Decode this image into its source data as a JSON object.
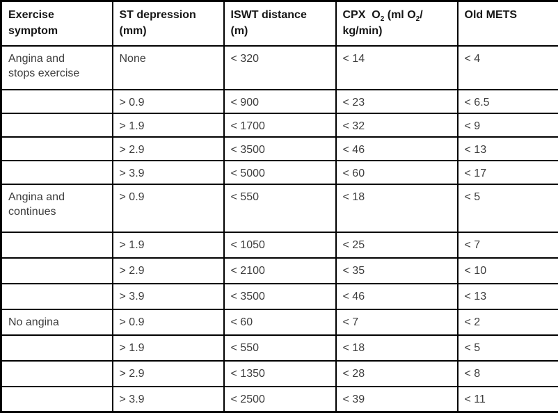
{
  "colors": {
    "border": "#000000",
    "header_text": "#161616",
    "body_text": "#3d3d3d",
    "background": "#ffffff"
  },
  "table": {
    "headers": {
      "symptom_l1": "Exercise",
      "symptom_l2": "symptom",
      "st_l1": "ST depression",
      "st_l2": "(mm)",
      "iswt_l1": "ISWT distance",
      "iswt_l2": "(m)",
      "cpx_l1a": "CPX  O",
      "cpx_sub": "2",
      "cpx_l1b": " (ml O",
      "cpx_l1c": "/",
      "cpx_l2": "kg/min)",
      "mets": "Old METS"
    },
    "rows": [
      {
        "symptom_lines": [
          "Angina and",
          "stops exercise"
        ],
        "st": "None",
        "iswt": "< 320",
        "cpx": "< 14",
        "mets": "< 4"
      },
      {
        "st": "> 0.9",
        "iswt": "< 900",
        "cpx": "< 23",
        "mets": "< 6.5"
      },
      {
        "st": "> 1.9",
        "iswt": "< 1700",
        "cpx": "< 32",
        "mets": "< 9"
      },
      {
        "st": "> 2.9",
        "iswt": "< 3500",
        "cpx": "< 46",
        "mets": "< 13"
      },
      {
        "st": "> 3.9",
        "iswt": "< 5000",
        "cpx": "< 60",
        "mets": "< 17"
      },
      {
        "symptom_lines": [
          "Angina and",
          "continues"
        ],
        "st": "> 0.9",
        "iswt": "< 550",
        "cpx": "< 18",
        "mets": "< 5"
      },
      {
        "st": "> 1.9",
        "iswt": "< 1050",
        "cpx": "< 25",
        "mets": "< 7"
      },
      {
        "st": "> 2.9",
        "iswt": "< 2100",
        "cpx": "< 35",
        "mets": "< 10"
      },
      {
        "st": "> 3.9",
        "iswt": "< 3500",
        "cpx": "< 46",
        "mets": "< 13"
      },
      {
        "symptom_lines": [
          "No angina"
        ],
        "st": "> 0.9",
        "iswt": "< 60",
        "cpx": "< 7",
        "mets": "< 2"
      },
      {
        "st": "> 1.9",
        "iswt": "< 550",
        "cpx": "< 18",
        "mets": "< 5"
      },
      {
        "st": "> 2.9",
        "iswt": "< 1350",
        "cpx": "< 28",
        "mets": "< 8"
      },
      {
        "st": "> 3.9",
        "iswt": "< 2500",
        "cpx": "< 39",
        "mets": "< 11"
      }
    ]
  }
}
